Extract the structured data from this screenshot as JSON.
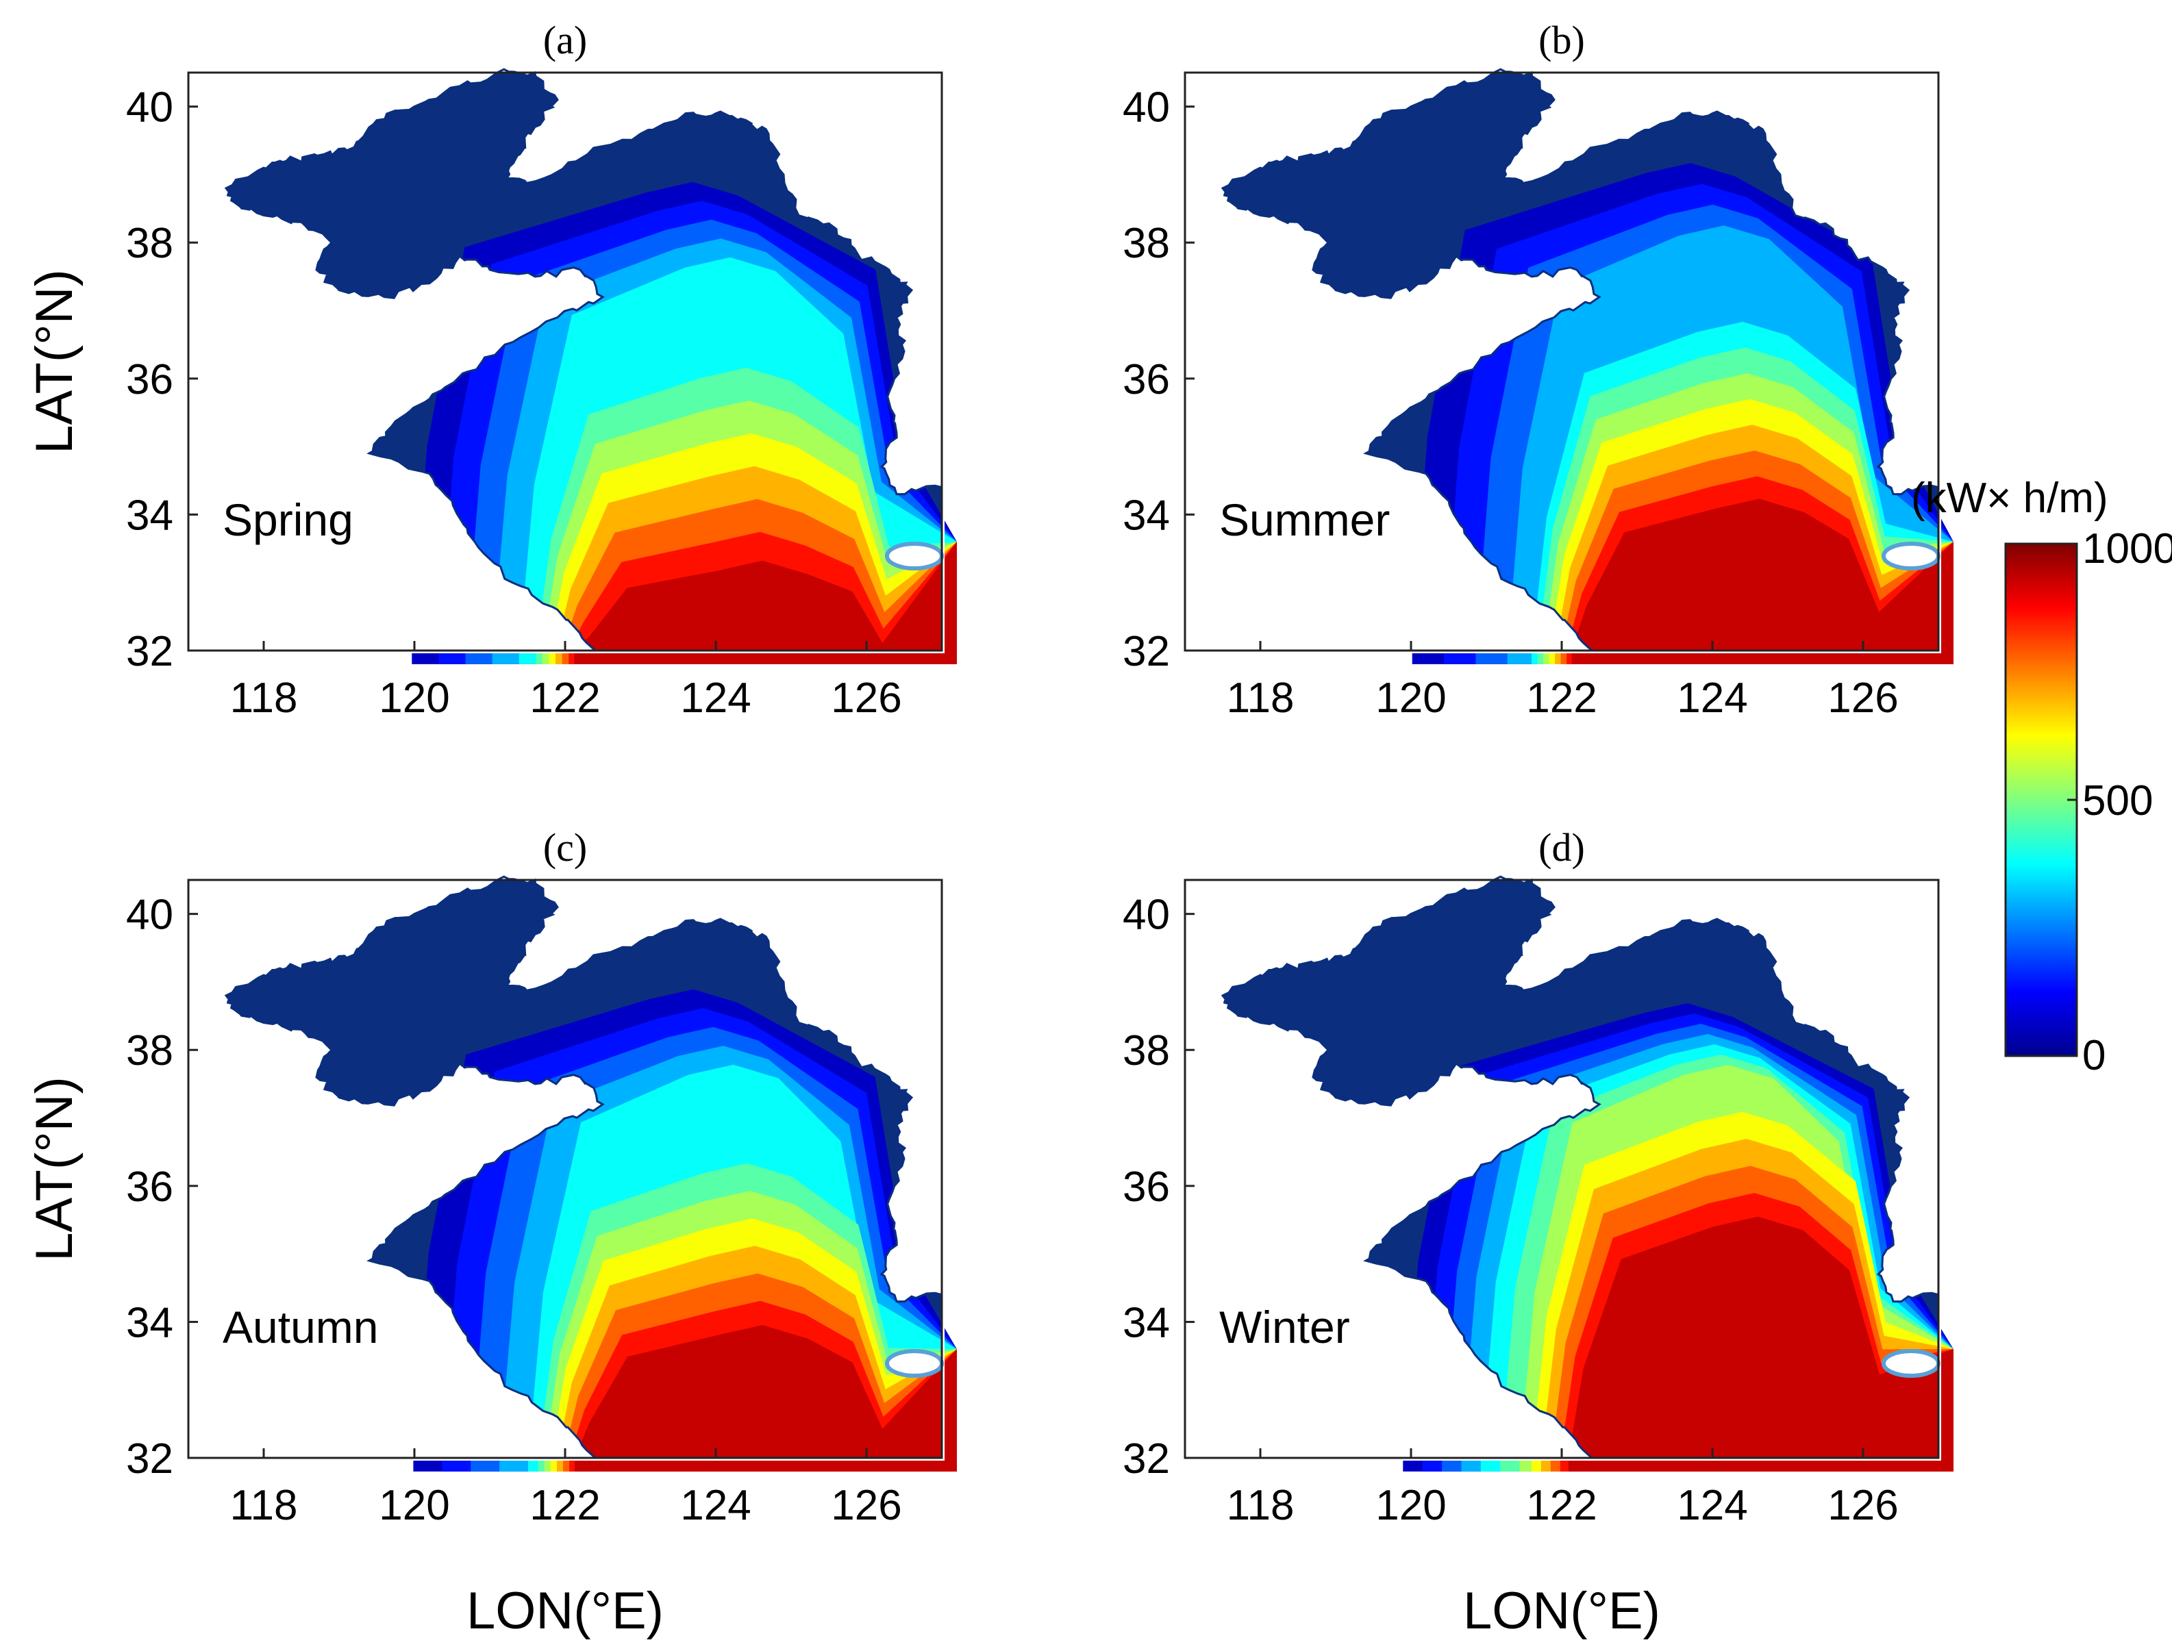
{
  "figure": {
    "x_axis_label": "LON(°E)",
    "y_axis_label": "LAT(°N)",
    "lon_range": [
      117,
      127
    ],
    "lat_range": [
      32,
      40.5
    ],
    "lon_ticks": [
      "118",
      "120",
      "122",
      "124",
      "126"
    ],
    "lat_ticks": [
      "32",
      "34",
      "36",
      "38",
      "40"
    ],
    "panels": [
      {
        "letter": "(a)",
        "season": "Spring",
        "peak": 1000,
        "front_lat": 33.5,
        "offshore_level": 450,
        "tongue_north": 37.9
      },
      {
        "letter": "(b)",
        "season": "Summer",
        "peak": 1000,
        "front_lat": 34.5,
        "offshore_level": 380,
        "tongue_north": 38.2
      },
      {
        "letter": "(c)",
        "season": "Autumn",
        "peak": 1000,
        "front_lat": 34.2,
        "offshore_level": 420,
        "tongue_north": 37.9
      },
      {
        "letter": "(d)",
        "season": "Winter",
        "peak": 1000,
        "front_lat": 35.8,
        "offshore_level": 620,
        "tongue_north": 37.6
      }
    ]
  },
  "colorbar": {
    "unit": "(kW× h/m)",
    "min_label": "0",
    "mid_label": "500",
    "max_label": "1000",
    "min": 0,
    "max": 1000,
    "colormap": "jet"
  },
  "colors": {
    "land": "#ffffff",
    "shelf_edge": "#0b2f7e",
    "peak": "#7a1517"
  }
}
